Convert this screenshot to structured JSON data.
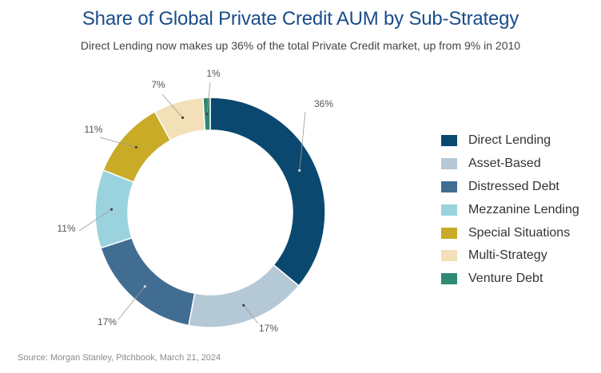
{
  "title": "Share of Global Private Credit AUM by Sub-Strategy",
  "subtitle": "Direct Lending now makes up 36% of the total Private Credit market, up from 9% in 2010",
  "source": "Source: Morgan Stanley, Pitchbook, March 21, 2024",
  "chart_data": {
    "type": "pie",
    "donut": true,
    "title": "Share of Global Private Credit AUM by Sub-Strategy",
    "legend_position": "right",
    "categories": [
      "Direct Lending",
      "Asset-Based",
      "Distressed Debt",
      "Mezzanine Lending",
      "Special Situations",
      "Multi-Strategy",
      "Venture Debt"
    ],
    "values": [
      36,
      17,
      17,
      11,
      11,
      7,
      1
    ],
    "labels": [
      "36%",
      "17%",
      "17%",
      "11%",
      "11%",
      "7%",
      "1%"
    ],
    "colors": [
      "#0b4870",
      "#b5c8d6",
      "#426d93",
      "#9ad3dd",
      "#c9ab28",
      "#f2e0b9",
      "#2e8a72"
    ]
  }
}
